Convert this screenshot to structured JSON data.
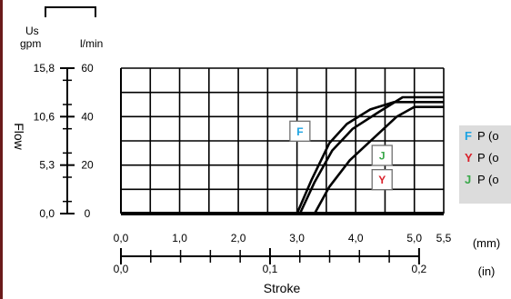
{
  "chart_data": {
    "type": "line",
    "ylabel": "Flow",
    "xlabel": "Stroke",
    "x_unit_mm": "(mm)",
    "x_unit_in": "(in)",
    "y_unit_label_left": "Us\ngpm",
    "y_unit_label_right": "l/min",
    "xlim_mm": [
      0,
      5.5
    ],
    "ylim_lmin": [
      0,
      60
    ],
    "grid": true,
    "x_ticks_mm": [
      "0,0",
      "1,0",
      "2,0",
      "3,0",
      "4,0",
      "5,0",
      "5,5"
    ],
    "x_ticks_in": [
      "0,0",
      "0,1",
      "0,2"
    ],
    "y_ticks_lmin": [
      "0",
      "20",
      "40",
      "60"
    ],
    "y_ticks_gpm": [
      "0,0",
      "5,3",
      "10,6",
      "15,8"
    ],
    "series": [
      {
        "name": "F",
        "color": "#1ca3e3",
        "x": [
          3.0,
          3.25,
          3.55,
          3.85,
          4.25,
          4.65,
          5.5
        ],
        "y": [
          0,
          14,
          29,
          37,
          43,
          46,
          46
        ]
      },
      {
        "name": "Y",
        "color": "#d9202a",
        "x": [
          3.05,
          3.3,
          3.6,
          3.95,
          4.4,
          4.8,
          5.5
        ],
        "y": [
          0,
          13,
          26,
          35,
          42,
          48,
          48
        ]
      },
      {
        "name": "J",
        "color": "#3aa84a",
        "x": [
          3.3,
          3.55,
          3.9,
          4.3,
          4.7,
          5.0,
          5.5
        ],
        "y": [
          0,
          11,
          22,
          31,
          40,
          44,
          44
        ]
      }
    ],
    "callouts": [
      {
        "label": "F",
        "color": "#1ca3e3",
        "x": 3.05,
        "y": 34
      },
      {
        "label": "J",
        "color": "#3aa84a",
        "x": 4.45,
        "y": 24
      },
      {
        "label": "Y",
        "color": "#d9202a",
        "x": 4.45,
        "y": 14
      }
    ],
    "legend": {
      "placement": "right",
      "entries": [
        {
          "key": "F",
          "color": "#1ca3e3",
          "text": "P (o"
        },
        {
          "key": "Y",
          "color": "#d9202a",
          "text": "P (o"
        },
        {
          "key": "J",
          "color": "#3aa84a",
          "text": "P (o"
        }
      ]
    }
  }
}
